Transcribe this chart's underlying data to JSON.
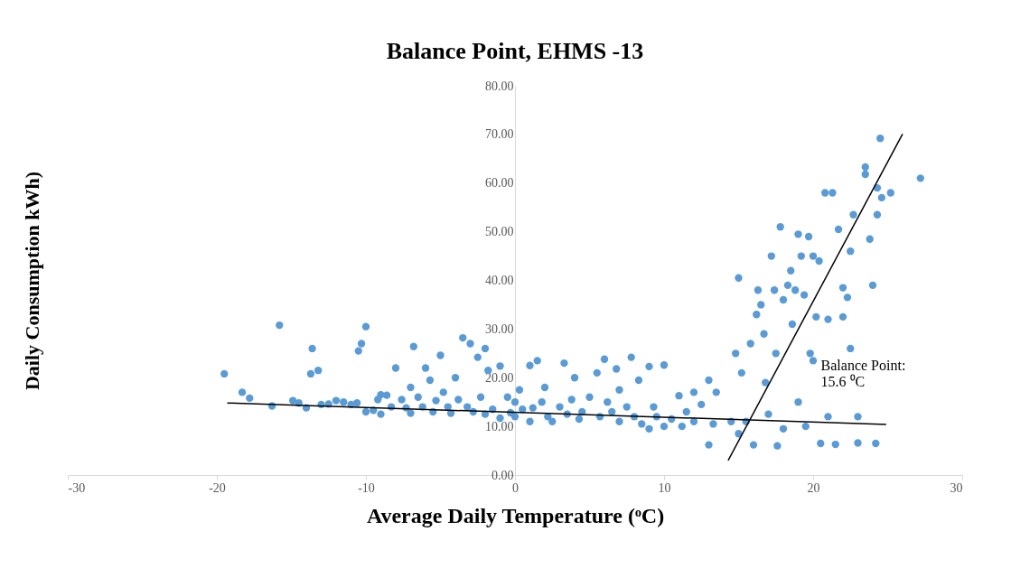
{
  "chart_data": {
    "type": "scatter",
    "title": "Balance Point, EHMS -13",
    "xlabel": "Average Daily Temperature (ᵒC)",
    "ylabel": "Daily Consumption kWh)",
    "xlim": [
      -30,
      30
    ],
    "xticks": [
      -30,
      -20,
      -10,
      0,
      10,
      20,
      30
    ],
    "ylim": [
      0,
      80
    ],
    "yticks": [
      {
        "value": 0,
        "label": "0.00"
      },
      {
        "value": 10,
        "label": "10.00"
      },
      {
        "value": 20,
        "label": "20.00"
      },
      {
        "value": 30,
        "label": "30.00"
      },
      {
        "value": 40,
        "label": "40.00"
      },
      {
        "value": 50,
        "label": "50.00"
      },
      {
        "value": 60,
        "label": "60.00"
      },
      {
        "value": 70,
        "label": "70.00"
      },
      {
        "value": 80,
        "label": "80.00"
      }
    ],
    "grid": false,
    "legend": false,
    "marker": "circle",
    "annotations": [
      "Balance Point:\n15.6 ⁰C"
    ],
    "series": [
      {
        "type": "scatter",
        "color": "#5b9bd5",
        "x": [
          -19.5,
          -18.3,
          -17.8,
          -16.3,
          -15.8,
          -14.9,
          -14.5,
          -14,
          -13.7,
          -13.6,
          -13.2,
          -13,
          -12.5,
          -12,
          -11.5,
          -11,
          -10.6,
          -10.5,
          -10.3,
          -10,
          -10,
          -9.5,
          -9.2,
          -9,
          -9,
          -8.6,
          -8.3,
          -8,
          -7.6,
          -7.3,
          -7,
          -7,
          -6.8,
          -6.5,
          -6.2,
          -6,
          -5.7,
          -5.5,
          -5.3,
          -5,
          -4.8,
          -4.5,
          -4.3,
          -4,
          -3.8,
          -3.5,
          -3.2,
          -3,
          -2.8,
          -2.5,
          -2.3,
          -2,
          -2,
          -1.8,
          -1.5,
          -1,
          -1,
          -0.5,
          -0.3,
          0,
          0,
          0.3,
          0.5,
          1,
          1,
          1.2,
          1.5,
          1.8,
          2,
          2.2,
          2.5,
          3,
          3.3,
          3.5,
          3.8,
          4,
          4.3,
          4.5,
          5,
          5.5,
          5.7,
          6,
          6.2,
          6.5,
          6.8,
          7,
          7,
          7.5,
          7.8,
          8,
          8.3,
          8.5,
          9,
          9,
          9.3,
          9.5,
          10,
          10,
          10.5,
          11,
          11.2,
          11.5,
          12,
          12,
          12.5,
          13,
          13,
          13.3,
          13.5,
          14.5,
          14.8,
          15,
          15,
          15.2,
          15.5,
          15.8,
          16,
          16.2,
          16.3,
          16.5,
          16.7,
          16.8,
          17,
          17.2,
          17.4,
          17.5,
          17.6,
          17.8,
          18,
          18,
          18.3,
          18.5,
          18.6,
          18.8,
          19,
          19,
          19.2,
          19.4,
          19.5,
          19.7,
          19.8,
          20,
          20,
          20.2,
          20.4,
          20.5,
          20.8,
          21,
          21,
          21.3,
          21.5,
          21.7,
          22,
          22,
          22.3,
          22.5,
          22.5,
          22.7,
          23,
          23,
          23.5,
          23.5,
          23.8,
          24,
          24.3,
          24.3,
          24.6,
          24.5,
          24.2,
          25.2,
          27.2
        ],
        "values": [
          20.8,
          17,
          15.8,
          14.2,
          30.8,
          15.3,
          14.8,
          13.8,
          20.8,
          26,
          21.5,
          14.5,
          14.6,
          15.3,
          15,
          14.5,
          14.8,
          25.5,
          27,
          30.5,
          13,
          13.3,
          15.5,
          16.5,
          12.5,
          16.4,
          14,
          22,
          15.5,
          13.8,
          18,
          12.7,
          26.4,
          16,
          14,
          22,
          19.5,
          13,
          15.3,
          24.6,
          17,
          14,
          12.7,
          20,
          15.5,
          28.2,
          14,
          27,
          13,
          24.2,
          16,
          26,
          12.5,
          21.5,
          13.5,
          22.4,
          11.7,
          16,
          12.8,
          15,
          12,
          17.5,
          13.5,
          22.5,
          11,
          13.8,
          23.5,
          15,
          18,
          12,
          11,
          14,
          23,
          12.5,
          15.5,
          20,
          11.5,
          13,
          16,
          21,
          12,
          23.8,
          15,
          13,
          21.8,
          11,
          17.5,
          14,
          24.2,
          12,
          19.5,
          10.5,
          22.3,
          9.5,
          14,
          12,
          22.6,
          10,
          11.5,
          16.3,
          10,
          13,
          17,
          11,
          14.5,
          19.5,
          6.2,
          10.5,
          17,
          11,
          25,
          40.5,
          8.5,
          21,
          11,
          27,
          6.2,
          33,
          38,
          35,
          29,
          19,
          12.5,
          45,
          38,
          25,
          6,
          51,
          36,
          9.5,
          39,
          42,
          31,
          38,
          49.5,
          15,
          45,
          37,
          10,
          49,
          25,
          45,
          23.5,
          32.5,
          44,
          6.5,
          58,
          32,
          12,
          58,
          6.3,
          50.5,
          32.5,
          38.5,
          36.5,
          26,
          46,
          53.5,
          6.6,
          12,
          61.8,
          63.3,
          48.5,
          39,
          59,
          53.5,
          57,
          69.2,
          6.5,
          58,
          61
        ]
      },
      {
        "type": "line",
        "marker": "none",
        "color": "#000000",
        "x": [
          -19.3,
          24.9
        ],
        "values": [
          14.8,
          10.4
        ]
      },
      {
        "type": "line",
        "marker": "none",
        "color": "#000000",
        "x": [
          14.3,
          26
        ],
        "values": [
          3,
          70.1
        ]
      }
    ]
  }
}
